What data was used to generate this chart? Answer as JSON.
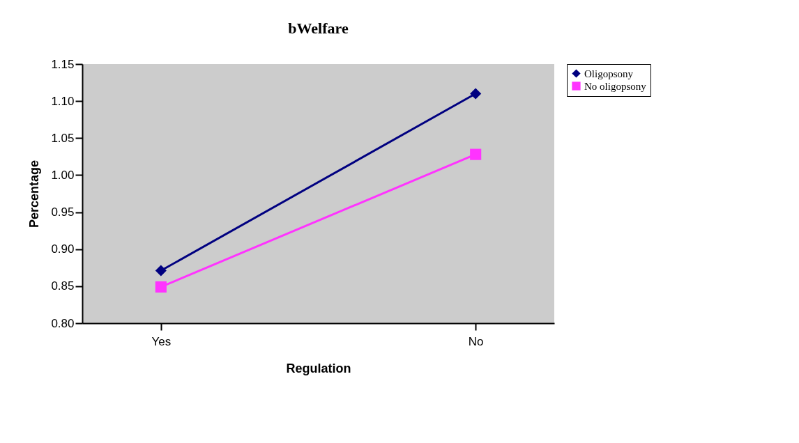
{
  "chart_data": {
    "type": "line",
    "title": "bWelfare",
    "xlabel": "Regulation",
    "ylabel": "Percentage",
    "categories": [
      "Yes",
      "No"
    ],
    "series": [
      {
        "name": "Oligopsony",
        "color": "#000080",
        "marker": "diamond",
        "values": [
          0.871,
          1.11
        ]
      },
      {
        "name": "No oligopsony",
        "color": "#ff33ff",
        "marker": "square",
        "values": [
          0.849,
          1.028
        ]
      }
    ],
    "ylim": [
      0.8,
      1.15
    ],
    "yticks": [
      {
        "value": 0.8,
        "label": "0.80"
      },
      {
        "value": 0.85,
        "label": "0.85"
      },
      {
        "value": 0.9,
        "label": "0.90"
      },
      {
        "value": 0.95,
        "label": "0.95"
      },
      {
        "value": 1.0,
        "label": "1.00"
      },
      {
        "value": 1.05,
        "label": "1.05"
      },
      {
        "value": 1.1,
        "label": "1.10"
      },
      {
        "value": 1.15,
        "label": "1.15"
      }
    ],
    "grid": false,
    "legend": "right",
    "line_style": "solid"
  }
}
